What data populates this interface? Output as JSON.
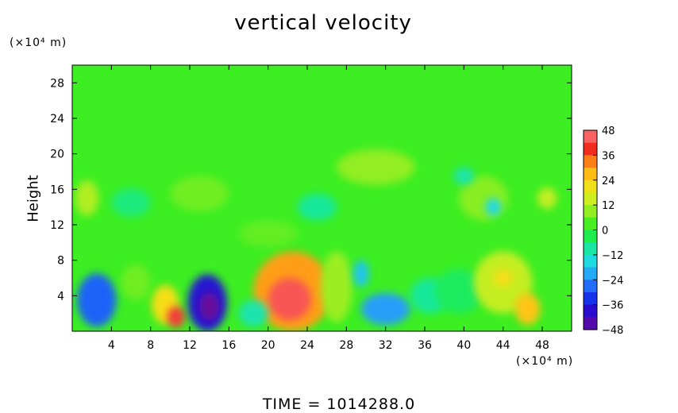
{
  "chart_data": {
    "type": "heatmap",
    "title": "vertical velocity",
    "ylabel": "Height",
    "y_unit_label": "(×10⁴ m)",
    "x_unit_label": "(×10⁴ m)",
    "footer": "TIME  =  1014288.0",
    "xlim": [
      0,
      51
    ],
    "ylim": [
      0,
      30
    ],
    "x_ticks": [
      4,
      8,
      12,
      16,
      20,
      24,
      28,
      32,
      36,
      40,
      44,
      48
    ],
    "y_ticks": [
      4,
      8,
      12,
      16,
      20,
      24,
      28
    ],
    "colorbar": {
      "range": [
        -48,
        48
      ],
      "ticks": [
        48,
        36,
        24,
        12,
        0,
        -12,
        -24,
        -36,
        -48
      ],
      "tick_labels": [
        "48",
        "36",
        "24",
        "12",
        "0",
        "−12",
        "−24",
        "−36",
        "−48"
      ],
      "stops": [
        {
          "value": -48,
          "color": "#6a0a9a"
        },
        {
          "value": -40,
          "color": "#2c06c8"
        },
        {
          "value": -32,
          "color": "#1438f0"
        },
        {
          "value": -24,
          "color": "#2a8cff"
        },
        {
          "value": -16,
          "color": "#20d8e8"
        },
        {
          "value": -8,
          "color": "#18e89a"
        },
        {
          "value": 0,
          "color": "#22ee22"
        },
        {
          "value": 8,
          "color": "#88ee22"
        },
        {
          "value": 16,
          "color": "#d8ee20"
        },
        {
          "value": 24,
          "color": "#ffd814"
        },
        {
          "value": 32,
          "color": "#ff8a14"
        },
        {
          "value": 40,
          "color": "#f02020"
        },
        {
          "value": 48,
          "color": "#ff8a8a"
        }
      ]
    },
    "background_value": 2,
    "features": [
      {
        "x": 2.5,
        "y": 3.5,
        "rx": 2.0,
        "ry": 3.0,
        "value": -28
      },
      {
        "x": 9.5,
        "y": 3.0,
        "rx": 1.4,
        "ry": 2.2,
        "value": 22
      },
      {
        "x": 10.6,
        "y": 1.6,
        "rx": 0.9,
        "ry": 1.2,
        "value": 42
      },
      {
        "x": 13.8,
        "y": 3.2,
        "rx": 2.0,
        "ry": 3.2,
        "value": -38
      },
      {
        "x": 14.0,
        "y": 2.8,
        "rx": 1.0,
        "ry": 1.6,
        "value": -48
      },
      {
        "x": 22.5,
        "y": 4.5,
        "rx": 4.0,
        "ry": 4.5,
        "value": 30
      },
      {
        "x": 22.2,
        "y": 3.6,
        "rx": 2.2,
        "ry": 2.4,
        "value": 44
      },
      {
        "x": 27.0,
        "y": 5.0,
        "rx": 1.6,
        "ry": 4.0,
        "value": 10
      },
      {
        "x": 29.5,
        "y": 6.5,
        "rx": 0.8,
        "ry": 1.5,
        "value": -18
      },
      {
        "x": 32.0,
        "y": 2.5,
        "rx": 2.5,
        "ry": 1.8,
        "value": -22
      },
      {
        "x": 36.5,
        "y": 4.0,
        "rx": 2.0,
        "ry": 2.0,
        "value": -8
      },
      {
        "x": 39.5,
        "y": 4.5,
        "rx": 2.5,
        "ry": 2.5,
        "value": -4
      },
      {
        "x": 44.0,
        "y": 5.5,
        "rx": 3.0,
        "ry": 3.5,
        "value": 14
      },
      {
        "x": 46.5,
        "y": 2.5,
        "rx": 1.3,
        "ry": 1.8,
        "value": 26
      },
      {
        "x": 44.0,
        "y": 6.0,
        "rx": 1.0,
        "ry": 1.0,
        "value": 22
      },
      {
        "x": 6.5,
        "y": 5.5,
        "rx": 1.5,
        "ry": 2.0,
        "value": 6
      },
      {
        "x": 18.5,
        "y": 2.0,
        "rx": 1.5,
        "ry": 1.5,
        "value": -10
      },
      {
        "x": 1.5,
        "y": 15.0,
        "rx": 1.2,
        "ry": 2.0,
        "value": 12
      },
      {
        "x": 13.0,
        "y": 15.5,
        "rx": 3.0,
        "ry": 2.0,
        "value": 6
      },
      {
        "x": 6.0,
        "y": 14.5,
        "rx": 2.0,
        "ry": 1.6,
        "value": -6
      },
      {
        "x": 31.0,
        "y": 18.5,
        "rx": 4.0,
        "ry": 2.0,
        "value": 9
      },
      {
        "x": 25.0,
        "y": 14.0,
        "rx": 2.0,
        "ry": 1.5,
        "value": -8
      },
      {
        "x": 42.0,
        "y": 15.0,
        "rx": 2.5,
        "ry": 2.5,
        "value": 8
      },
      {
        "x": 43.0,
        "y": 14.0,
        "rx": 0.8,
        "ry": 1.0,
        "value": -16
      },
      {
        "x": 48.5,
        "y": 15.0,
        "rx": 1.0,
        "ry": 1.2,
        "value": 14
      },
      {
        "x": 40.0,
        "y": 17.5,
        "rx": 1.0,
        "ry": 1.0,
        "value": -10
      },
      {
        "x": 20.0,
        "y": 11.0,
        "rx": 3.0,
        "ry": 1.5,
        "value": 5
      }
    ]
  }
}
